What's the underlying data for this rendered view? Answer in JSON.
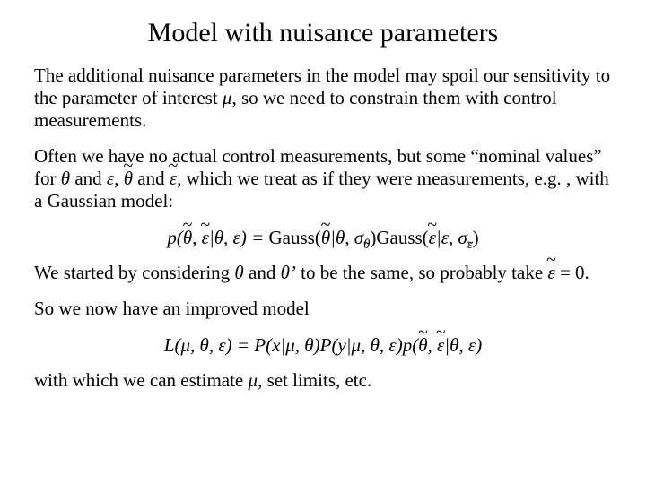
{
  "title": "Model with nuisance parameters",
  "p1": "The additional nuisance parameters in the model may spoil our sensitivity to the parameter of interest ",
  "p1_mu": "μ",
  "p1_tail": ", so we need to constrain them with control measurements.",
  "p2a": "Often we have no actual control measurements, but some “nominal values” for ",
  "p2_theta": "θ",
  "p2_and1": " and ",
  "p2_eps": "ε",
  "p2_comma1": ",  ",
  "p2_ttheta": "θ",
  "p2_and2": " and ",
  "p2_teps": "ε",
  "p2_comma2": ", ",
  "p2b": "which we treat as if they were measurements, e.g. , with a Gaussian model:",
  "eq1": {
    "p": "p",
    "open": "(",
    "ttheta": "θ",
    "comma1": ", ",
    "teps": "ε",
    "bar": "|",
    "theta": "θ",
    "comma2": ", ",
    "eps": "ε",
    "close_eq": ") = ",
    "gauss1": "Gauss(",
    "g1_ttheta": "θ",
    "g1_bar": "|",
    "g1_theta": "θ",
    "g1_comma": ", ",
    "sigma1": "σ",
    "sigma1_sub_ttheta": "θ",
    "g1_close": ")",
    "gauss2": "Gauss(",
    "g2_teps": "ε",
    "g2_bar": "|",
    "g2_eps": "ε",
    "g2_comma": ", ",
    "sigma2": "σ",
    "sigma2_sub_teps": "ε",
    "g2_close": ")"
  },
  "p3a": "We started by considering ",
  "p3_theta": "θ",
  "p3_and": " and ",
  "p3_thetap": "θ’",
  "p3b": " to be the same, so probably take ",
  "p3_teps": "ε",
  "p3c": " = 0.",
  "p4": "So we now have an improved model",
  "eq2": {
    "L": "L",
    "open": "(",
    "mu": "μ",
    "c1": ", ",
    "theta": "θ",
    "c2": ", ",
    "eps": "ε",
    "close_eq": ") = ",
    "P1": "P",
    "p1_open": "(",
    "x": "x",
    "p1_bar": "|",
    "p1_mu": "μ",
    "p1_c": ", ",
    "p1_theta": "θ",
    "p1_close": ")",
    "P2": "P",
    "p2_open": "(",
    "y": "y",
    "p2_bar": "|",
    "p2_mu": "μ",
    "p2_c1": ", ",
    "p2_theta": "θ",
    "p2_c2": ", ",
    "p2_eps": "ε",
    "p2_close": ")",
    "p": "p",
    "p3_open": "(",
    "p3_ttheta": "θ",
    "p3_c": ", ",
    "p3_teps": "ε",
    "p3_bar": "|",
    "p3_theta": "θ",
    "p3_c2": ", ",
    "p3_eps": "ε",
    "p3_close": ")"
  },
  "p5a": "with which we can estimate ",
  "p5_mu": "μ",
  "p5b": ", set limits, etc."
}
